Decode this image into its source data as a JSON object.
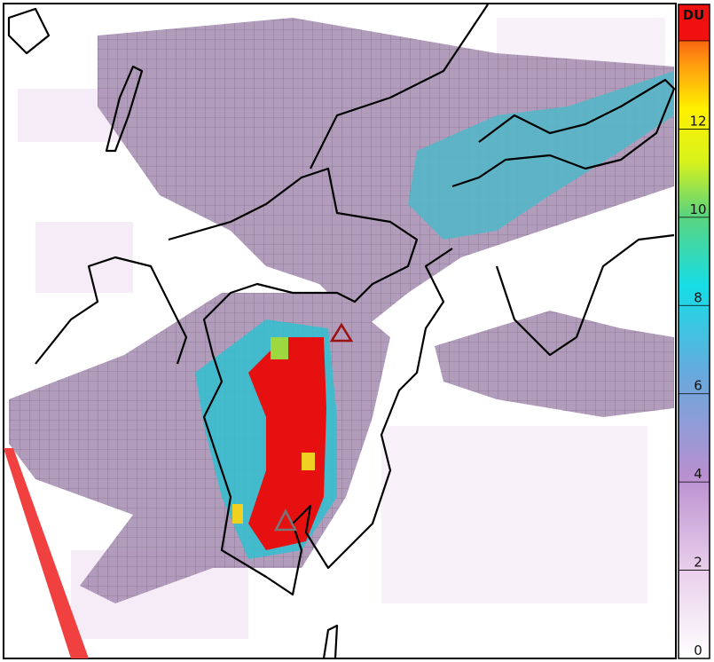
{
  "colorbar": {
    "label": "DU",
    "lim": [
      0,
      14
    ],
    "ticks": [
      0,
      2,
      4,
      6,
      8,
      10,
      12
    ]
  }
}
